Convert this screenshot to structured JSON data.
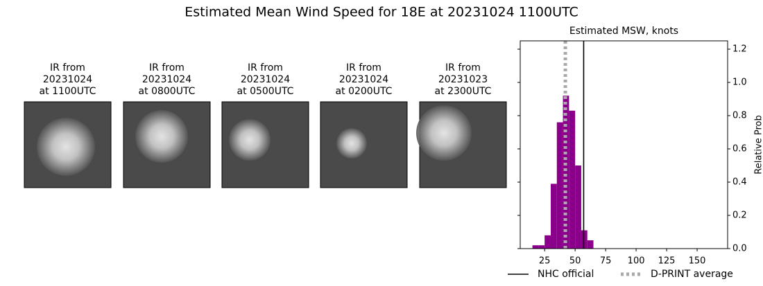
{
  "title": "Estimated Mean Wind Speed for 18E at 20231024 1100UTC",
  "images": [
    {
      "caption": [
        "IR from",
        "20231024",
        "at 1100UTC"
      ]
    },
    {
      "caption": [
        "IR from",
        "20231024",
        "at 0800UTC"
      ]
    },
    {
      "caption": [
        "IR from",
        "20231024",
        "at 0500UTC"
      ]
    },
    {
      "caption": [
        "IR from",
        "20231024",
        "at 0200UTC"
      ]
    },
    {
      "caption": [
        "IR from",
        "20231023",
        "at 2300UTC"
      ]
    }
  ],
  "chart_data": {
    "type": "histogram",
    "title": "Estimated MSW, knots",
    "y_label": "Relative Prob",
    "bins": [
      15,
      20,
      25,
      30,
      35,
      40,
      45,
      50,
      55,
      60,
      65
    ],
    "values": [
      0.02,
      0.02,
      0.08,
      0.39,
      0.76,
      0.92,
      0.83,
      0.5,
      0.11,
      0.05
    ],
    "color": "#8b008b",
    "xlim": [
      5,
      175
    ],
    "xticks": [
      25,
      50,
      75,
      100,
      125,
      150
    ],
    "ylim": [
      0,
      1.25
    ],
    "yticks": [
      {
        "value": 0,
        "label": "0.0"
      },
      {
        "value": 0.2,
        "label": "0.2"
      },
      {
        "value": 0.4,
        "label": "0.4"
      },
      {
        "value": 0.6,
        "label": "0.6"
      },
      {
        "value": 0.8,
        "label": "0.8"
      },
      {
        "value": 1,
        "label": "1.0"
      },
      {
        "value": 1.2,
        "label": "1.2"
      }
    ],
    "y_axis_side": "right",
    "reference_lines": [
      {
        "name": "NHC official",
        "value": 57,
        "color": "#000000",
        "style": "solid"
      },
      {
        "name": "D-PRINT average",
        "value": 42,
        "color": "#aaaaaa",
        "style": "dotted"
      }
    ]
  }
}
